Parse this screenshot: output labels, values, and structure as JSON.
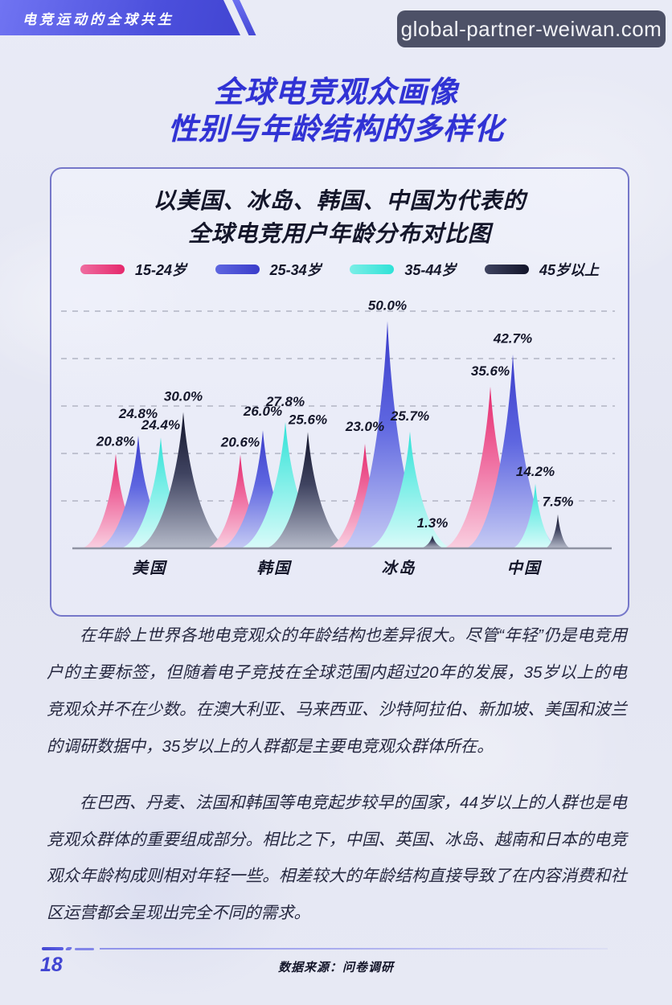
{
  "header": {
    "banner_label": "电竞运动的全球共生",
    "watermark_text": "global-partner-weiwan.com",
    "page_title_line1": "全球电竞观众画像",
    "page_title_line2": "性别与年龄结构的多样化"
  },
  "chart_card": {
    "title_line1": "以美国、冰岛、韩国、中国为代表的",
    "title_line2": "全球电竞用户年龄分布对比图"
  },
  "chart_data": {
    "type": "area",
    "subtype": "peak-spike-comparison",
    "title": "以美国、冰岛、韩国、中国为代表的全球电竞用户年龄分布对比图",
    "categories": [
      "美国",
      "韩国",
      "冰岛",
      "中国"
    ],
    "series": [
      {
        "name": "15-24岁",
        "color_top": "#e5286c",
        "color_mid": "#ef6da0",
        "color_base": "#f9cfe0",
        "values": [
          20.8,
          20.6,
          23.0,
          35.6
        ],
        "label_dy": [
          0,
          0,
          -6,
          -4
        ]
      },
      {
        "name": "25-34岁",
        "color_top": "#3a3cca",
        "color_mid": "#5e66e0",
        "color_base": "#c6cbf4",
        "values": [
          24.8,
          26.0,
          50.0,
          42.7
        ],
        "label_dy": [
          -12,
          -8,
          -4,
          -4
        ]
      },
      {
        "name": "35-44岁",
        "color_top": "#2fe2d7",
        "color_mid": "#7beee7",
        "color_base": "#d9fbf9",
        "values": [
          24.4,
          27.8,
          25.7,
          14.2
        ],
        "label_dy": [
          0,
          -10,
          -4,
          0
        ]
      },
      {
        "name": "45岁以上",
        "color_top": "#12142a",
        "color_mid": "#3f4360",
        "color_base": "#b5bac9",
        "values": [
          30.0,
          25.6,
          1.3,
          7.5
        ],
        "label_dy": [
          -4,
          0,
          0,
          0
        ]
      }
    ],
    "value_suffix": "%",
    "ylim": [
      0,
      55
    ],
    "gridline_values": [
      10,
      20,
      30,
      40,
      50
    ],
    "grid_style": "dashed",
    "legend_position": "top",
    "baseline_value": 0
  },
  "body": {
    "paragraph1": "在年龄上世界各地电竞观众的年龄结构也差异很大。尽管“年轻”仍是电竞用户的主要标签，但随着电子竞技在全球范围内超过20年的发展，35岁以上的电竞观众并不在少数。在澳大利亚、马来西亚、沙特阿拉伯、新加坡、美国和波兰的调研数据中，35岁以上的人群都是主要电竞观众群体所在。",
    "paragraph2": "在巴西、丹麦、法国和韩国等电竞起步较早的国家，44岁以上的人群也是电竞观众群体的重要组成部分。相比之下，中国、英国、冰岛、越南和日本的电竞观众年龄构成则相对年轻一些。相差较大的年龄结构直接导致了在内容消费和社区运营都会呈现出完全不同的需求。"
  },
  "footer": {
    "page_number": "18",
    "source_label": "数据来源：问卷调研"
  }
}
